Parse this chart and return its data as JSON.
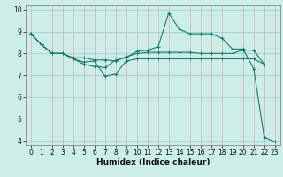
{
  "xlabel": "Humidex (Indice chaleur)",
  "bg_color": "#cceee8",
  "grid_color_v": "#e8b0b0",
  "grid_color_h": "#a0d0cc",
  "line_color": "#1a7a6e",
  "xlim": [
    -0.5,
    23.5
  ],
  "ylim": [
    3.8,
    10.2
  ],
  "yticks": [
    4,
    5,
    6,
    7,
    8,
    9,
    10
  ],
  "xticks": [
    0,
    1,
    2,
    3,
    4,
    5,
    6,
    7,
    8,
    9,
    10,
    11,
    12,
    13,
    14,
    15,
    16,
    17,
    18,
    19,
    20,
    21,
    22,
    23
  ],
  "line1_x": [
    0,
    1,
    2,
    3,
    4,
    5,
    6,
    7,
    8,
    9,
    10,
    11,
    12,
    13,
    14,
    15,
    16,
    17,
    18,
    19,
    20,
    21,
    22,
    23
  ],
  "line1_y": [
    8.9,
    8.4,
    8.0,
    8.0,
    7.75,
    7.5,
    7.4,
    7.35,
    7.7,
    7.8,
    8.1,
    8.15,
    8.3,
    9.85,
    9.1,
    8.9,
    8.9,
    8.9,
    8.7,
    8.2,
    8.2,
    7.3,
    4.15,
    3.95
  ],
  "line2_x": [
    0,
    1,
    2,
    3,
    4,
    5,
    6,
    7,
    8,
    9,
    10,
    11,
    12,
    13,
    14,
    15,
    16,
    17,
    18,
    19,
    20,
    21,
    22
  ],
  "line2_y": [
    8.9,
    8.4,
    8.0,
    8.0,
    7.8,
    7.8,
    7.7,
    7.7,
    7.65,
    7.85,
    8.0,
    8.05,
    8.05,
    8.05,
    8.05,
    8.05,
    8.0,
    8.0,
    8.0,
    8.0,
    8.15,
    8.15,
    7.5
  ],
  "line3_x": [
    0,
    1,
    2,
    3,
    4,
    5,
    6,
    7,
    8,
    9,
    10,
    11,
    12,
    13,
    14,
    15,
    16,
    17,
    18,
    19,
    20,
    21,
    22
  ],
  "line3_y": [
    8.9,
    8.4,
    8.0,
    8.0,
    7.75,
    7.6,
    7.65,
    6.95,
    7.05,
    7.65,
    7.75,
    7.75,
    7.75,
    7.75,
    7.75,
    7.75,
    7.75,
    7.75,
    7.75,
    7.75,
    7.75,
    7.75,
    7.5
  ],
  "marker": "+",
  "marker_size": 3,
  "marker_ew": 0.7,
  "line_width": 0.8,
  "tick_fontsize": 5.5,
  "xlabel_fontsize": 6.5,
  "spine_color": "#888888"
}
